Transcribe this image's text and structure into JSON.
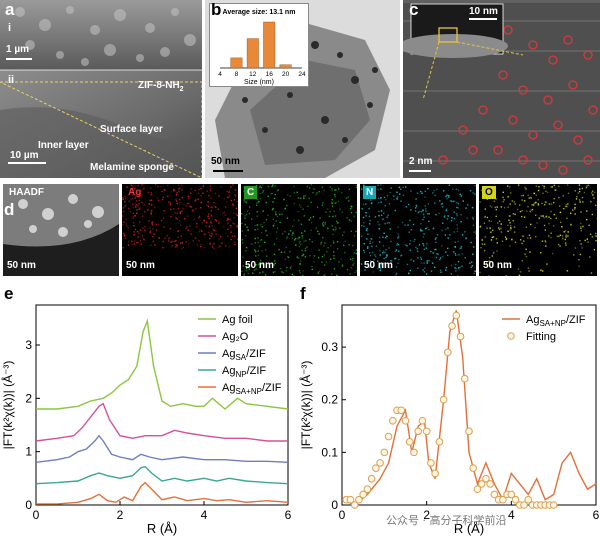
{
  "figure": {
    "panel_a": {
      "label": "a",
      "sub_i": "i",
      "sub_ii": "ii",
      "scale_top": "1 µm",
      "scale_bottom": "10 µm",
      "material": "ZIF-8-NH",
      "material_sub": "2",
      "surface_layer": "Surface layer",
      "inner_layer": "Inner layer",
      "sponge": "Melamine sponge"
    },
    "panel_b": {
      "label": "b",
      "inset_title": "Average size: 13.1 nm",
      "inset_xlabel": "Size (nm)",
      "scale": "50 nm"
    },
    "panel_c": {
      "label": "c",
      "inset_scale": "10 nm",
      "scale": "2 nm"
    },
    "panel_d": {
      "label": "d",
      "maps": [
        {
          "title": "HAADF",
          "scale": "50 nm",
          "color": "#bbbbbb"
        },
        {
          "title": "Ag",
          "scale": "50 nm",
          "color": "#d8201e"
        },
        {
          "title": "C",
          "scale": "50 nm",
          "color": "#23b623"
        },
        {
          "title": "N",
          "scale": "50 nm",
          "color": "#18c7d4"
        },
        {
          "title": "O",
          "scale": "50 nm",
          "color": "#d9d91f"
        }
      ]
    },
    "panel_e": {
      "label": "e"
    },
    "panel_f": {
      "label": "f"
    },
    "watermark": "公众号 · 高分子科学前沿"
  },
  "chart_data": [
    {
      "type": "bar",
      "title": "Average size: 13.1 nm",
      "xlabel": "Size (nm)",
      "categories": [
        8,
        12,
        16,
        20
      ],
      "values": [
        0.22,
        0.64,
        1.0,
        0.07
      ],
      "xlim": [
        4,
        24
      ],
      "xticks": [
        "4",
        "8",
        "12",
        "16",
        "20",
        "24"
      ],
      "bar_color": "#e8893a"
    },
    {
      "type": "line",
      "xlabel": "R (Å)",
      "ylabel": "|FT(k²χ(k))| (Å⁻³)",
      "xlim": [
        0,
        6
      ],
      "ylim": [
        0,
        3.75
      ],
      "xticks": [
        0,
        2,
        4,
        6
      ],
      "yticks": [
        0,
        1,
        2,
        3
      ],
      "legend_position": "top-right",
      "series": [
        {
          "name": "Ag foil",
          "color": "#8cc63f",
          "x": [
            0,
            0.5,
            1,
            1.3,
            1.6,
            1.8,
            2.0,
            2.2,
            2.4,
            2.55,
            2.65,
            2.8,
            3.0,
            3.2,
            3.5,
            3.8,
            4.0,
            4.2,
            4.5,
            4.8,
            5.0,
            5.5,
            6.0
          ],
          "y": [
            1.8,
            1.8,
            1.85,
            1.95,
            2.0,
            2.1,
            2.25,
            2.35,
            2.6,
            3.25,
            3.45,
            2.6,
            1.95,
            1.85,
            1.9,
            1.85,
            1.85,
            2.0,
            1.8,
            2.0,
            1.9,
            1.85,
            1.8
          ]
        },
        {
          "name": "Ag₂O",
          "color": "#d4509b",
          "x": [
            0,
            0.5,
            0.9,
            1.1,
            1.3,
            1.5,
            1.6,
            1.75,
            2.0,
            2.3,
            2.6,
            3.0,
            3.3,
            3.6,
            4.0,
            4.5,
            5.0,
            5.5,
            6.0
          ],
          "y": [
            1.2,
            1.25,
            1.3,
            1.45,
            1.65,
            1.85,
            1.9,
            1.6,
            1.3,
            1.25,
            1.3,
            1.3,
            1.4,
            1.35,
            1.3,
            1.25,
            1.25,
            1.2,
            1.2
          ]
        },
        {
          "name": "Ag_SA/ZIF",
          "color": "#6d7fc0",
          "x": [
            0,
            0.5,
            0.8,
            1.0,
            1.2,
            1.4,
            1.5,
            1.6,
            1.8,
            2.0,
            2.3,
            2.5,
            2.7,
            3.0,
            3.5,
            4.0,
            4.5,
            5.0,
            5.5,
            6.0
          ],
          "y": [
            0.8,
            0.85,
            0.9,
            1.0,
            1.05,
            1.2,
            1.3,
            1.2,
            0.95,
            0.9,
            0.85,
            0.95,
            0.9,
            0.85,
            0.9,
            0.85,
            0.85,
            0.82,
            0.82,
            0.8
          ]
        },
        {
          "name": "Ag_NP/ZIF",
          "color": "#3aa596",
          "x": [
            0,
            0.5,
            1.0,
            1.3,
            1.5,
            1.7,
            2.0,
            2.3,
            2.5,
            2.6,
            2.75,
            3.0,
            3.3,
            3.6,
            4.0,
            4.3,
            4.6,
            5.0,
            5.5,
            6.0
          ],
          "y": [
            0.4,
            0.42,
            0.45,
            0.55,
            0.6,
            0.55,
            0.5,
            0.55,
            0.7,
            0.72,
            0.6,
            0.45,
            0.5,
            0.45,
            0.5,
            0.45,
            0.5,
            0.45,
            0.42,
            0.4
          ]
        },
        {
          "name": "Ag_SA+NP/ZIF",
          "color": "#e2703a",
          "x": [
            0,
            0.5,
            1.0,
            1.3,
            1.5,
            1.7,
            1.9,
            2.1,
            2.3,
            2.5,
            2.6,
            2.75,
            3.0,
            3.3,
            3.6,
            4.0,
            4.3,
            4.6,
            5.0,
            5.5,
            6.0
          ],
          "y": [
            0.02,
            0.02,
            0.05,
            0.12,
            0.2,
            0.08,
            0.05,
            0.15,
            0.08,
            0.35,
            0.42,
            0.3,
            0.1,
            0.15,
            0.08,
            0.12,
            0.08,
            0.1,
            0.05,
            0.08,
            0.05
          ]
        }
      ]
    },
    {
      "type": "line",
      "xlabel": "R (Å)",
      "ylabel": "|FT(k²χ(k))| (Å⁻³)",
      "xlim": [
        0,
        6
      ],
      "ylim": [
        0,
        0.38
      ],
      "xticks": [
        0,
        2,
        4,
        6
      ],
      "yticks": [
        0,
        0.1,
        0.2,
        0.3
      ],
      "legend_position": "top-right",
      "series": [
        {
          "name": "Ag_SA+NP/ZIF",
          "style": "line",
          "color": "#e2703a",
          "x": [
            0,
            0.3,
            0.6,
            0.9,
            1.1,
            1.3,
            1.5,
            1.65,
            1.8,
            1.95,
            2.05,
            2.2,
            2.4,
            2.55,
            2.7,
            2.85,
            3.0,
            3.2,
            3.4,
            3.6,
            3.8,
            4.0,
            4.2,
            4.4,
            4.6,
            4.8,
            5.0,
            5.2,
            5.4,
            5.6,
            5.8,
            6.0
          ],
          "y": [
            0.01,
            0.0,
            0.02,
            0.05,
            0.08,
            0.15,
            0.18,
            0.1,
            0.15,
            0.16,
            0.08,
            0.05,
            0.2,
            0.33,
            0.37,
            0.28,
            0.1,
            0.04,
            0.08,
            0.04,
            0.01,
            0.06,
            0.04,
            0.02,
            0.05,
            0.01,
            0.02,
            0.08,
            0.1,
            0.06,
            0.03,
            0.04
          ]
        },
        {
          "name": "Fitting",
          "style": "markers",
          "color": "#d9a050",
          "x": [
            0.1,
            0.2,
            0.3,
            0.4,
            0.5,
            0.6,
            0.7,
            0.8,
            0.9,
            1.0,
            1.1,
            1.2,
            1.3,
            1.4,
            1.5,
            1.6,
            1.7,
            1.8,
            1.9,
            2.0,
            2.1,
            2.2,
            2.3,
            2.4,
            2.5,
            2.6,
            2.7,
            2.8,
            2.9,
            3.0,
            3.1,
            3.2,
            3.3,
            3.4,
            3.5,
            3.6,
            3.7,
            3.8,
            3.9,
            4.0,
            4.1,
            4.2,
            4.3,
            4.4,
            4.5,
            4.6,
            4.7,
            4.8,
            4.9,
            5.0
          ],
          "y": [
            0.01,
            0.01,
            0.0,
            0.01,
            0.02,
            0.03,
            0.05,
            0.07,
            0.08,
            0.1,
            0.13,
            0.16,
            0.18,
            0.18,
            0.16,
            0.12,
            0.1,
            0.14,
            0.16,
            0.14,
            0.08,
            0.06,
            0.12,
            0.2,
            0.29,
            0.34,
            0.36,
            0.32,
            0.24,
            0.14,
            0.07,
            0.03,
            0.04,
            0.05,
            0.04,
            0.02,
            0.01,
            0.01,
            0.02,
            0.02,
            0.01,
            0.0,
            0.0,
            0.01,
            0.0,
            0.0,
            0.0,
            0.0,
            0.0,
            0.0
          ]
        }
      ]
    }
  ]
}
